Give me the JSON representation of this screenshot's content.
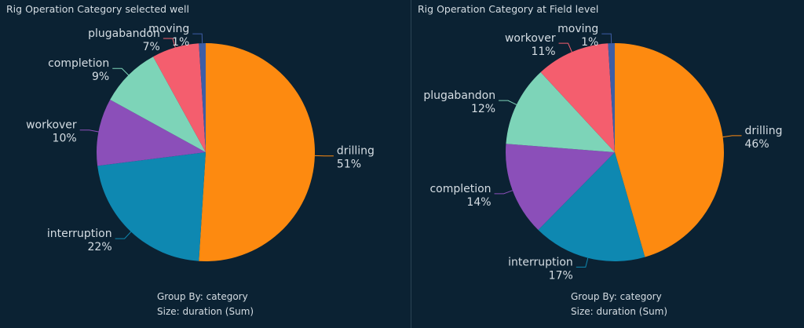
{
  "chart_data": [
    {
      "type": "pie",
      "title": "Rig Operation Category selected well",
      "slices": [
        {
          "label": "drilling",
          "value": 51,
          "pct": "51%",
          "color": "#fd8a10"
        },
        {
          "label": "interruption",
          "value": 22,
          "pct": "22%",
          "color": "#0e88b1"
        },
        {
          "label": "workover",
          "value": 10,
          "pct": "10%",
          "color": "#8b4fb9"
        },
        {
          "label": "completion",
          "value": 9,
          "pct": "9%",
          "color": "#7dd4b8"
        },
        {
          "label": "plugabandon",
          "value": 7,
          "pct": "7%",
          "color": "#f45e6e"
        },
        {
          "label": "moving",
          "value": 1,
          "pct": "1%",
          "color": "#3e5ea6"
        }
      ],
      "group_by": "Group By: category",
      "size": "Size: duration (Sum)"
    },
    {
      "type": "pie",
      "title": "Rig Operation Category at Field level",
      "slices": [
        {
          "label": "drilling",
          "value": 46,
          "pct": "46%",
          "color": "#fd8a10"
        },
        {
          "label": "interruption",
          "value": 17,
          "pct": "17%",
          "color": "#0e88b1"
        },
        {
          "label": "completion",
          "value": 14,
          "pct": "14%",
          "color": "#8b4fb9"
        },
        {
          "label": "plugabandon",
          "value": 12,
          "pct": "12%",
          "color": "#7dd4b8"
        },
        {
          "label": "workover",
          "value": 11,
          "pct": "11%",
          "color": "#f45e6e"
        },
        {
          "label": "moving",
          "value": 1,
          "pct": "1%",
          "color": "#3e5ea6"
        }
      ],
      "group_by": "Group By: category",
      "size": "Size: duration (Sum)"
    }
  ]
}
